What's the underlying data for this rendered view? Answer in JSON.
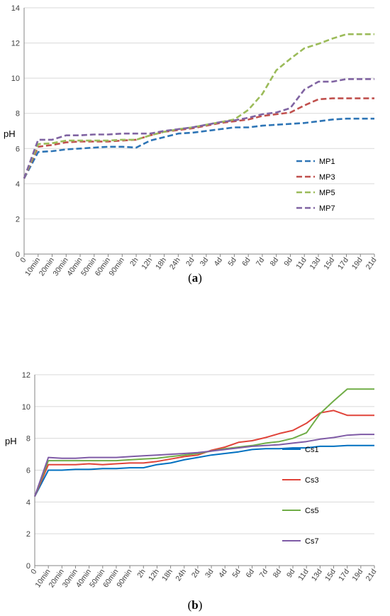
{
  "chart_data": [
    {
      "type": "line",
      "panel_label": "(a)",
      "panel_letter": "a",
      "ylabel": "pH",
      "ylim": [
        0,
        14
      ],
      "yticks": [
        0,
        2,
        4,
        6,
        8,
        10,
        12,
        14
      ],
      "grid": "horizontal",
      "legend_position": "right",
      "line_style": "dashed",
      "categories": [
        "0",
        "10min",
        "20min",
        "30min",
        "40min",
        "50min",
        "60min",
        "90min",
        "2h",
        "12h",
        "18h",
        "24h",
        "2d",
        "3d",
        "4d",
        "5d",
        "6d",
        "7d",
        "8d",
        "9d",
        "11d",
        "13d",
        "15d",
        "17d",
        "19d",
        "21d"
      ],
      "series": [
        {
          "name": "MP1",
          "color": "#2e75b6",
          "values": [
            4.3,
            5.8,
            5.85,
            5.95,
            6.0,
            6.05,
            6.1,
            6.1,
            6.05,
            6.45,
            6.65,
            6.85,
            6.9,
            7.0,
            7.1,
            7.2,
            7.2,
            7.3,
            7.35,
            7.4,
            7.45,
            7.55,
            7.65,
            7.7,
            7.7,
            7.7
          ]
        },
        {
          "name": "MP3",
          "color": "#c0504d",
          "values": [
            4.3,
            6.1,
            6.2,
            6.35,
            6.4,
            6.4,
            6.4,
            6.45,
            6.5,
            6.75,
            6.95,
            7.05,
            7.15,
            7.3,
            7.45,
            7.55,
            7.65,
            7.85,
            7.95,
            8.05,
            8.45,
            8.8,
            8.85,
            8.85,
            8.85,
            8.85
          ]
        },
        {
          "name": "MP5",
          "color": "#9bbb59",
          "values": [
            4.3,
            6.25,
            6.3,
            6.45,
            6.45,
            6.45,
            6.45,
            6.5,
            6.5,
            6.75,
            6.95,
            7.1,
            7.2,
            7.35,
            7.5,
            7.65,
            8.2,
            9.1,
            10.45,
            11.1,
            11.7,
            11.95,
            12.25,
            12.5,
            12.5,
            12.5
          ]
        },
        {
          "name": "MP7",
          "color": "#8064a2",
          "values": [
            4.3,
            6.5,
            6.5,
            6.75,
            6.75,
            6.8,
            6.8,
            6.85,
            6.85,
            6.85,
            7.0,
            7.1,
            7.2,
            7.35,
            7.5,
            7.6,
            7.75,
            7.95,
            8.05,
            8.3,
            9.35,
            9.8,
            9.8,
            9.95,
            9.95,
            9.95
          ]
        }
      ]
    },
    {
      "type": "line",
      "panel_label": "(b)",
      "panel_letter": "b",
      "ylabel": "pH",
      "ylim": [
        0,
        12
      ],
      "yticks": [
        0,
        2,
        4,
        6,
        8,
        10,
        12
      ],
      "grid": "horizontal",
      "legend_position": "right",
      "line_style": "solid",
      "categories": [
        "0",
        "10min",
        "20min",
        "30min",
        "40min",
        "50min",
        "60min",
        "90min",
        "2h",
        "12h",
        "18h",
        "24h",
        "2d",
        "3d",
        "4d",
        "5d",
        "6d",
        "7d",
        "8d",
        "9d",
        "11d",
        "13d",
        "15d",
        "17d",
        "19d",
        "21d"
      ],
      "series": [
        {
          "name": "Cs1",
          "color": "#0070c0",
          "values": [
            4.35,
            6.0,
            6.0,
            6.05,
            6.05,
            6.1,
            6.1,
            6.15,
            6.15,
            6.35,
            6.45,
            6.65,
            6.8,
            6.95,
            7.05,
            7.15,
            7.3,
            7.35,
            7.35,
            7.4,
            7.4,
            7.5,
            7.5,
            7.55,
            7.55,
            7.55
          ]
        },
        {
          "name": "Cs3",
          "color": "#e0443a",
          "values": [
            4.35,
            6.35,
            6.35,
            6.35,
            6.4,
            6.35,
            6.4,
            6.45,
            6.45,
            6.55,
            6.7,
            6.85,
            6.95,
            7.25,
            7.45,
            7.75,
            7.85,
            8.05,
            8.3,
            8.5,
            8.95,
            9.6,
            9.75,
            9.45,
            9.45,
            9.45
          ]
        },
        {
          "name": "Cs5",
          "color": "#70ad47",
          "values": [
            4.35,
            6.6,
            6.6,
            6.6,
            6.6,
            6.6,
            6.6,
            6.65,
            6.7,
            6.75,
            6.85,
            6.95,
            7.05,
            7.2,
            7.35,
            7.45,
            7.55,
            7.7,
            7.8,
            8.0,
            8.35,
            9.55,
            10.35,
            11.1,
            11.1,
            11.1
          ]
        },
        {
          "name": "Cs7",
          "color": "#7f5ba6",
          "values": [
            4.35,
            6.8,
            6.75,
            6.75,
            6.8,
            6.8,
            6.8,
            6.85,
            6.9,
            6.95,
            7.0,
            7.05,
            7.1,
            7.2,
            7.3,
            7.4,
            7.5,
            7.55,
            7.6,
            7.7,
            7.8,
            7.95,
            8.05,
            8.2,
            8.25,
            8.25
          ]
        }
      ]
    }
  ]
}
